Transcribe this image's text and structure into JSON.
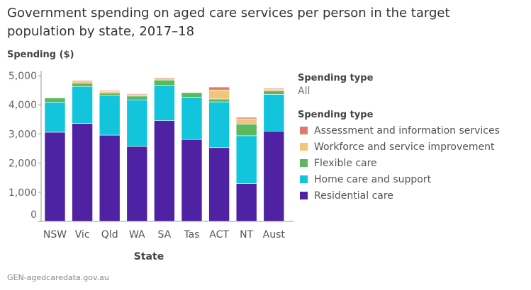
{
  "title": "Government spending on aged care services per person in the target population by state, 2017–18",
  "source": "GEN-agedcaredata.gov.au",
  "filter": {
    "label": "Spending type",
    "value": "All"
  },
  "chart_data": {
    "type": "bar",
    "stacked": true,
    "title": "Government spending on aged care services per person in the target population by state, 2017–18",
    "xlabel": "State",
    "ylabel": "Spending ($)",
    "ylim": [
      0,
      5000
    ],
    "yticks": [
      0,
      1000,
      2000,
      3000,
      4000,
      5000
    ],
    "ytick_labels": [
      "0",
      "1,000",
      "2,000",
      "3,000",
      "4,000",
      "5,000"
    ],
    "grid": false,
    "legend_title": "Spending type",
    "legend_position": "right",
    "categories": [
      "NSW",
      "Vic",
      "Qld",
      "WA",
      "SA",
      "Tas",
      "ACT",
      "NT",
      "Aust"
    ],
    "series": [
      {
        "name": "Residential care",
        "color": "#4e22a3",
        "values": [
          3060,
          3360,
          2960,
          2570,
          3460,
          2810,
          2530,
          1300,
          3100
        ]
      },
      {
        "name": "Home care and support",
        "color": "#12c5dc",
        "values": [
          1030,
          1270,
          1360,
          1600,
          1210,
          1450,
          1570,
          1640,
          1260
        ]
      },
      {
        "name": "Flexible care",
        "color": "#5bb85d",
        "values": [
          150,
          110,
          80,
          130,
          180,
          160,
          100,
          400,
          120
        ]
      },
      {
        "name": "Workforce and service improvement",
        "color": "#f2c57c",
        "values": [
          10,
          70,
          60,
          50,
          50,
          10,
          310,
          180,
          60
        ]
      },
      {
        "name": "Assessment and information services",
        "color": "#e07b6b",
        "values": [
          5,
          30,
          30,
          30,
          30,
          5,
          100,
          50,
          30
        ]
      }
    ],
    "legend_order": [
      4,
      3,
      2,
      1,
      0
    ]
  }
}
